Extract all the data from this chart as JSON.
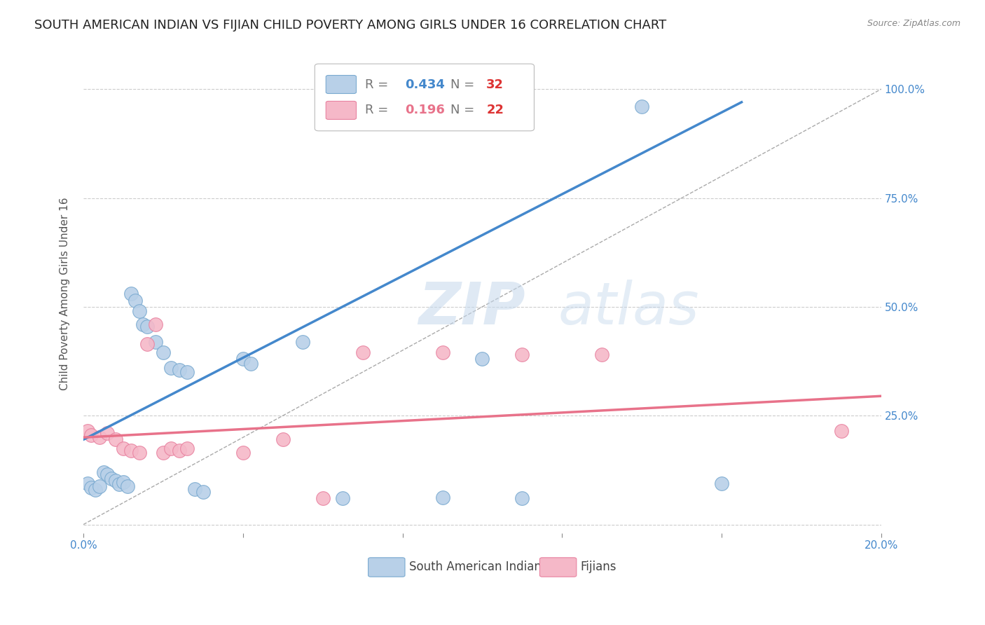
{
  "title": "SOUTH AMERICAN INDIAN VS FIJIAN CHILD POVERTY AMONG GIRLS UNDER 16 CORRELATION CHART",
  "source": "Source: ZipAtlas.com",
  "ylabel": "Child Poverty Among Girls Under 16",
  "xlim": [
    0.0,
    0.2
  ],
  "ylim": [
    -0.02,
    1.08
  ],
  "yticks": [
    0.0,
    0.25,
    0.5,
    0.75,
    1.0
  ],
  "ytick_labels": [
    "",
    "25.0%",
    "50.0%",
    "75.0%",
    "100.0%"
  ],
  "xticks": [
    0.0,
    0.04,
    0.08,
    0.12,
    0.16,
    0.2
  ],
  "xtick_labels": [
    "0.0%",
    "",
    "",
    "",
    "",
    "20.0%"
  ],
  "blue_R": 0.434,
  "blue_N": 32,
  "pink_R": 0.196,
  "pink_N": 22,
  "blue_color": "#b8d0e8",
  "pink_color": "#f5b8c8",
  "blue_edge_color": "#7aaad0",
  "pink_edge_color": "#e882a0",
  "blue_line_color": "#4488cc",
  "pink_line_color": "#e8728a",
  "blue_scatter": [
    [
      0.001,
      0.095
    ],
    [
      0.002,
      0.085
    ],
    [
      0.003,
      0.08
    ],
    [
      0.004,
      0.088
    ],
    [
      0.005,
      0.12
    ],
    [
      0.006,
      0.115
    ],
    [
      0.007,
      0.105
    ],
    [
      0.008,
      0.1
    ],
    [
      0.009,
      0.092
    ],
    [
      0.01,
      0.098
    ],
    [
      0.011,
      0.088
    ],
    [
      0.012,
      0.53
    ],
    [
      0.013,
      0.515
    ],
    [
      0.014,
      0.49
    ],
    [
      0.015,
      0.46
    ],
    [
      0.016,
      0.455
    ],
    [
      0.018,
      0.42
    ],
    [
      0.02,
      0.395
    ],
    [
      0.022,
      0.36
    ],
    [
      0.024,
      0.355
    ],
    [
      0.026,
      0.35
    ],
    [
      0.028,
      0.082
    ],
    [
      0.03,
      0.075
    ],
    [
      0.04,
      0.38
    ],
    [
      0.042,
      0.37
    ],
    [
      0.055,
      0.42
    ],
    [
      0.065,
      0.06
    ],
    [
      0.09,
      0.062
    ],
    [
      0.1,
      0.38
    ],
    [
      0.11,
      0.06
    ],
    [
      0.14,
      0.96
    ],
    [
      0.16,
      0.095
    ]
  ],
  "pink_scatter": [
    [
      0.001,
      0.215
    ],
    [
      0.002,
      0.205
    ],
    [
      0.004,
      0.2
    ],
    [
      0.006,
      0.21
    ],
    [
      0.008,
      0.195
    ],
    [
      0.01,
      0.175
    ],
    [
      0.012,
      0.17
    ],
    [
      0.014,
      0.165
    ],
    [
      0.016,
      0.415
    ],
    [
      0.018,
      0.46
    ],
    [
      0.02,
      0.165
    ],
    [
      0.022,
      0.175
    ],
    [
      0.024,
      0.17
    ],
    [
      0.026,
      0.175
    ],
    [
      0.04,
      0.165
    ],
    [
      0.05,
      0.195
    ],
    [
      0.06,
      0.06
    ],
    [
      0.07,
      0.395
    ],
    [
      0.09,
      0.395
    ],
    [
      0.11,
      0.39
    ],
    [
      0.13,
      0.39
    ],
    [
      0.19,
      0.215
    ]
  ],
  "blue_line": [
    [
      0.0,
      0.195
    ],
    [
      0.165,
      0.97
    ]
  ],
  "pink_line": [
    [
      0.0,
      0.2
    ],
    [
      0.2,
      0.295
    ]
  ],
  "diagonal_line": [
    [
      0.0,
      0.0
    ],
    [
      0.2,
      1.0
    ]
  ],
  "background_color": "#ffffff",
  "grid_color": "#cccccc",
  "watermark_text": "ZIPatlas",
  "title_fontsize": 13,
  "label_fontsize": 11,
  "tick_fontsize": 11
}
